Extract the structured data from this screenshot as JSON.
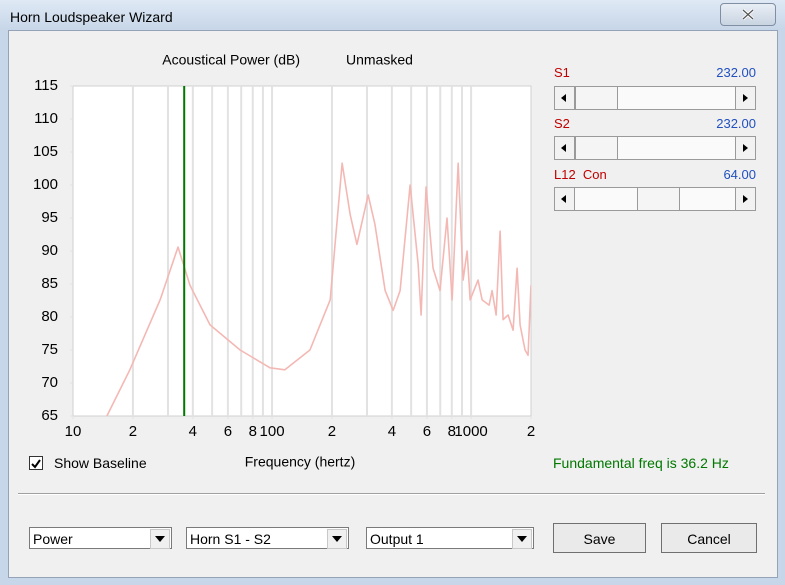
{
  "window": {
    "title": "Horn Loudspeaker Wizard"
  },
  "chart_data": {
    "type": "line",
    "title": "Acoustical Power (dB)",
    "subtitle": "Unmasked",
    "x_label": "Frequency (hertz)",
    "xscale": "log",
    "color": "#f4b8b4",
    "x": [
      14.8,
      19.3,
      27.4,
      33.7,
      38.7,
      48.8,
      69.1,
      97.7,
      116,
      155,
      196,
      225,
      247,
      267,
      304,
      329,
      370,
      406,
      440,
      494,
      542,
      561,
      594,
      644,
      698,
      757,
      803,
      861,
      912,
      955,
      989,
      1084,
      1136,
      1232,
      1275,
      1336,
      1399,
      1448,
      1535,
      1626,
      1703,
      1763,
      1867,
      1933,
      2000
    ],
    "values": [
      65,
      72,
      82.6,
      90.6,
      84.8,
      78.8,
      75,
      72.3,
      72,
      75,
      82.6,
      103.3,
      95.5,
      91,
      98.5,
      94,
      84,
      81,
      84,
      100,
      88,
      80.3,
      99.7,
      87.4,
      84,
      95,
      82.6,
      103.3,
      85.6,
      90,
      82.6,
      85.6,
      82.6,
      81.8,
      84,
      80.3,
      93,
      79.6,
      80.3,
      78,
      87.4,
      78.8,
      75,
      74.2,
      84.8
    ],
    "xlim": [
      10,
      2000
    ],
    "xticks": [
      10,
      {
        "value": 20,
        "label": "2"
      },
      {
        "value": 40,
        "label": "4"
      },
      {
        "value": 60,
        "label": "6"
      },
      {
        "value": 80,
        "label": "8"
      },
      100,
      {
        "value": 200,
        "label": "2"
      },
      {
        "value": 400,
        "label": "4"
      },
      {
        "value": 600,
        "label": "6"
      },
      {
        "value": 800,
        "label": "8"
      },
      1000,
      {
        "value": 2000,
        "label": "2"
      }
    ],
    "xgrid": [
      20,
      30,
      40,
      50,
      60,
      70,
      80,
      90,
      100,
      200,
      300,
      400,
      500,
      600,
      700,
      800,
      900,
      1000
    ],
    "ylim": [
      65,
      115
    ],
    "yticks": [
      65,
      70,
      75,
      80,
      85,
      90,
      95,
      100,
      105,
      110,
      115
    ],
    "grid": true,
    "marker_x": 36.2,
    "marker_color": "#007800"
  },
  "sliders": [
    {
      "label": "S1",
      "value": "232.00"
    },
    {
      "label": "S2",
      "value": "232.00"
    },
    {
      "label": "L12  Con",
      "value": "64.00"
    }
  ],
  "checkbox": {
    "label": "Show Baseline",
    "checked": true
  },
  "status": "Fundamental freq is 36.2 Hz",
  "dropdowns": [
    "Power",
    "Horn S1 - S2",
    "Output 1"
  ],
  "buttons": [
    "Save",
    "Cancel"
  ]
}
